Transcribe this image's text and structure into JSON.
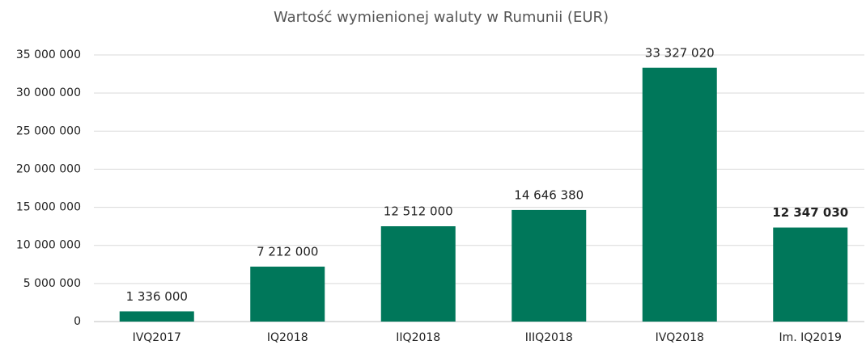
{
  "chart_data": {
    "type": "bar",
    "title": "Wartość wymienionej waluty w Rumunii (EUR)",
    "categories": [
      "IVQ2017",
      "IQ2018",
      "IIQ2018",
      "IIIQ2018",
      "IVQ2018",
      "Im. IQ2019"
    ],
    "values": [
      1336000,
      7212000,
      12512000,
      14646380,
      33327020,
      12347030
    ],
    "value_labels": [
      "1 336 000",
      "7 212 000",
      "12 512 000",
      "14 646 380",
      "33 327 020",
      "12 347 030"
    ],
    "color": "#00775a",
    "ylim": [
      0,
      35000000
    ],
    "yticks": [
      0,
      {
        "value": 5000000,
        "label": "5 000 000"
      },
      {
        "value": 10000000,
        "label": "10 000 000"
      },
      {
        "value": 15000000,
        "label": "15 000 000"
      },
      {
        "value": 20000000,
        "label": "20 000 000"
      },
      {
        "value": 25000000,
        "label": "25 000 000"
      },
      {
        "value": 30000000,
        "label": "30 000 000"
      },
      {
        "value": 35000000,
        "label": "35 000 000"
      }
    ],
    "grid": true
  }
}
